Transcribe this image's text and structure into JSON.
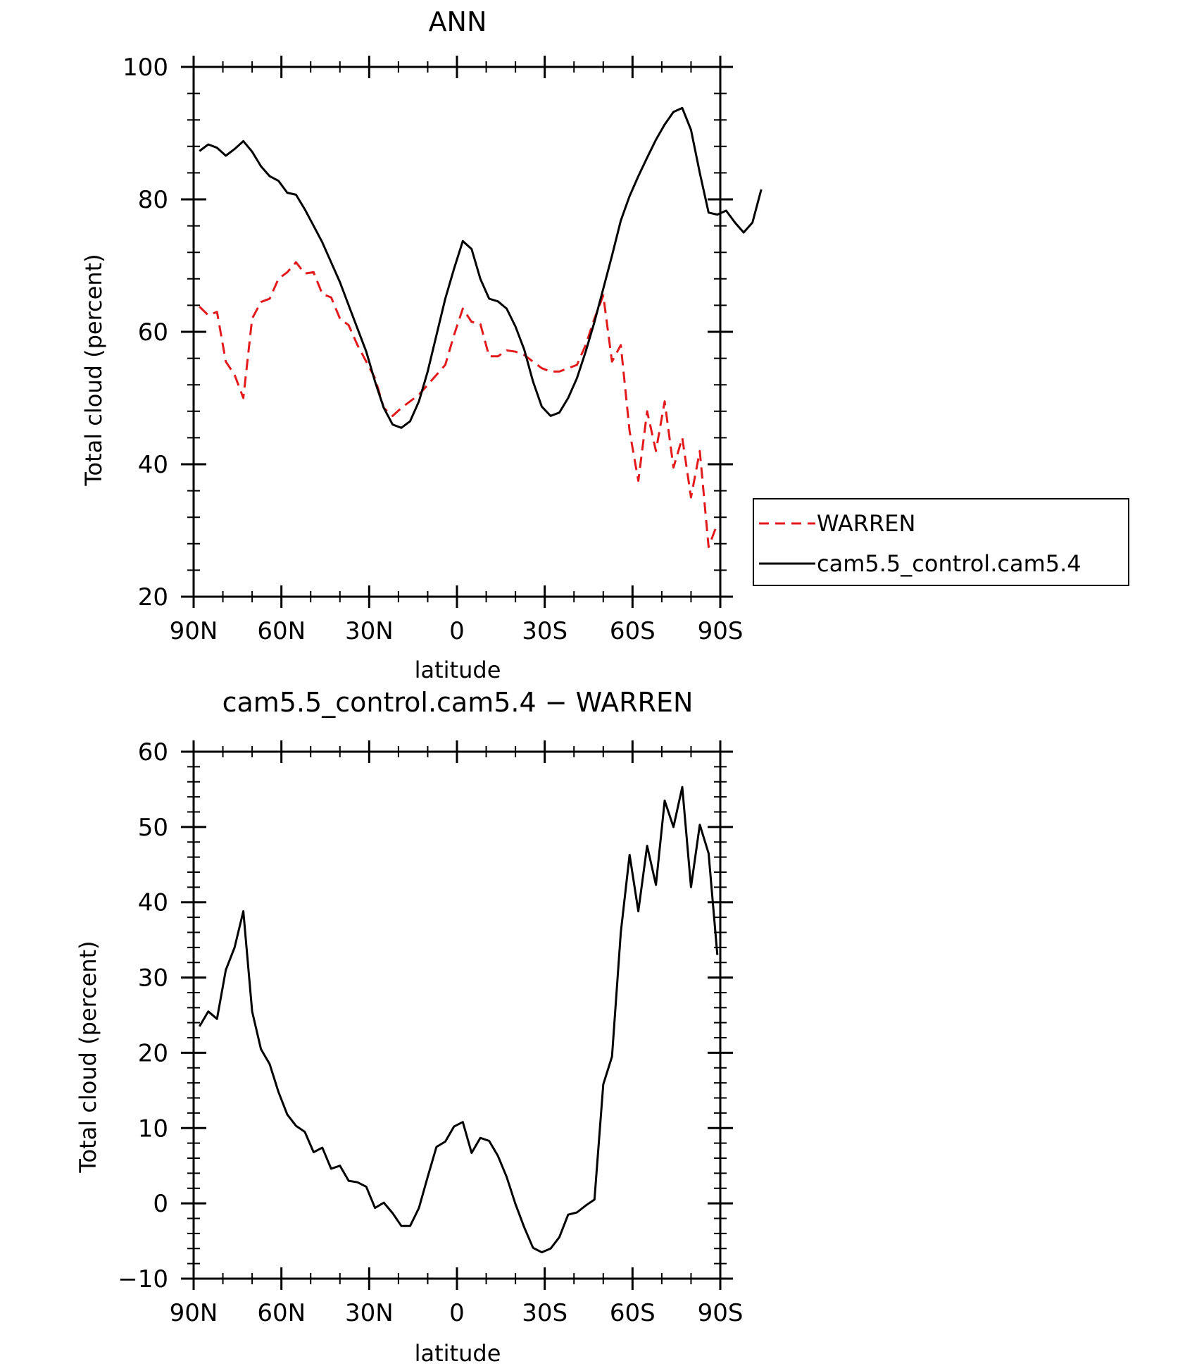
{
  "chart_data": [
    {
      "type": "line",
      "title": "ANN",
      "xlabel": "latitude",
      "ylabel": "Total cloud (percent)",
      "xlim": [
        90,
        -90
      ],
      "ylim": [
        20,
        100
      ],
      "x_tick_values": [
        90,
        60,
        30,
        0,
        -30,
        -60,
        -90
      ],
      "x_tick_labels": [
        "90N",
        "60N",
        "30N",
        "0",
        "30S",
        "60S",
        "90S"
      ],
      "y_tick_values": [
        20,
        40,
        60,
        80,
        100
      ],
      "y_tick_labels": [
        "20",
        "40",
        "60",
        "80",
        "100"
      ],
      "grid": false,
      "legend_position": "right",
      "series": [
        {
          "name": "WARREN",
          "color": "#e31a1c",
          "dash": "dashed",
          "points": [
            [
              88,
              63.8
            ],
            [
              85,
              62.5
            ],
            [
              82,
              63
            ],
            [
              79,
              55.5
            ],
            [
              76,
              53.5
            ],
            [
              73,
              50
            ],
            [
              70,
              62
            ],
            [
              67,
              64.5
            ],
            [
              64,
              65
            ],
            [
              61,
              68
            ],
            [
              58,
              69
            ],
            [
              55,
              70.5
            ],
            [
              52,
              68.8
            ],
            [
              49,
              69
            ],
            [
              46,
              65.7
            ],
            [
              43,
              65.2
            ],
            [
              40,
              62
            ],
            [
              37,
              61
            ],
            [
              34,
              58
            ],
            [
              31,
              55.5
            ],
            [
              28,
              53
            ],
            [
              25,
              48.5
            ],
            [
              22,
              47.3
            ],
            [
              19,
              48.5
            ],
            [
              16,
              49.5
            ],
            [
              13,
              50.5
            ],
            [
              10,
              52
            ],
            [
              7,
              53.5
            ],
            [
              4,
              55
            ],
            [
              1,
              59.5
            ],
            [
              -2,
              63.5
            ],
            [
              -5,
              61.5
            ],
            [
              -8,
              61.2
            ],
            [
              -11,
              56.3
            ],
            [
              -14,
              56.3
            ],
            [
              -17,
              57.2
            ],
            [
              -20,
              57
            ],
            [
              -23,
              56.5
            ],
            [
              -26,
              55.5
            ],
            [
              -29,
              54.5
            ],
            [
              -32,
              54
            ],
            [
              -35,
              54
            ],
            [
              -38,
              54.5
            ],
            [
              -41,
              55
            ],
            [
              -44,
              58
            ],
            [
              -47,
              62
            ],
            [
              -50,
              65.5
            ],
            [
              -53,
              55.5
            ],
            [
              -56,
              58
            ],
            [
              -59,
              45
            ],
            [
              -62,
              37.5
            ],
            [
              -65,
              48
            ],
            [
              -68,
              42
            ],
            [
              -71,
              49.5
            ],
            [
              -74,
              39.5
            ],
            [
              -77,
              44
            ],
            [
              -80,
              35
            ],
            [
              -83,
              42
            ],
            [
              -86,
              27.5
            ],
            [
              -89,
              31
            ]
          ]
        },
        {
          "name": "cam5.5_control.cam5.4",
          "color": "#000000",
          "dash": "solid",
          "points": [
            [
              88,
              87.3
            ],
            [
              85,
              88.3
            ],
            [
              82,
              87.8
            ],
            [
              79,
              86.6
            ],
            [
              76,
              87.6
            ],
            [
              73,
              88.8
            ],
            [
              70,
              87.2
            ],
            [
              67,
              85
            ],
            [
              64,
              83.5
            ],
            [
              61,
              82.8
            ],
            [
              58,
              81
            ],
            [
              55,
              80.7
            ],
            [
              52,
              78.5
            ],
            [
              49,
              76
            ],
            [
              46,
              73.5
            ],
            [
              43,
              70.5
            ],
            [
              40,
              67.5
            ],
            [
              37,
              64
            ],
            [
              34,
              60.5
            ],
            [
              31,
              57
            ],
            [
              28,
              52.5
            ],
            [
              25,
              48.5
            ],
            [
              22,
              46
            ],
            [
              19,
              45.5
            ],
            [
              16,
              46.5
            ],
            [
              13,
              49.5
            ],
            [
              10,
              54
            ],
            [
              7,
              59.5
            ],
            [
              4,
              65
            ],
            [
              1,
              69.5
            ],
            [
              -2,
              73.7
            ],
            [
              -5,
              72.5
            ],
            [
              -8,
              68
            ],
            [
              -11,
              65
            ],
            [
              -14,
              64.6
            ],
            [
              -17,
              63.5
            ],
            [
              -20,
              60.8
            ],
            [
              -23,
              57.3
            ],
            [
              -26,
              52.5
            ],
            [
              -29,
              48.7
            ],
            [
              -32,
              47.3
            ],
            [
              -35,
              47.8
            ],
            [
              -38,
              50
            ],
            [
              -41,
              53
            ],
            [
              -44,
              57
            ],
            [
              -47,
              61.5
            ],
            [
              -50,
              66.5
            ],
            [
              -53,
              71.5
            ],
            [
              -56,
              76.8
            ],
            [
              -59,
              80.5
            ],
            [
              -62,
              83.5
            ],
            [
              -65,
              86.3
            ],
            [
              -68,
              89
            ],
            [
              -71,
              91.3
            ],
            [
              -74,
              93.2
            ],
            [
              -77,
              93.8
            ],
            [
              -80,
              90.5
            ],
            [
              -83,
              84
            ],
            [
              -86,
              78
            ],
            [
              -89,
              77.7
            ],
            [
              -92,
              78.3
            ],
            [
              -95,
              76.5
            ],
            [
              -98,
              75
            ],
            [
              -101,
              76.5
            ],
            [
              -104,
              81.5
            ]
          ]
        }
      ]
    },
    {
      "type": "line",
      "title": "cam5.5_control.cam5.4 − WARREN",
      "xlabel": "latitude",
      "ylabel": "Total cloud (percent)",
      "xlim": [
        90,
        -90
      ],
      "ylim": [
        -10,
        60
      ],
      "x_tick_values": [
        90,
        60,
        30,
        0,
        -30,
        -60,
        -90
      ],
      "x_tick_labels": [
        "90N",
        "60N",
        "30N",
        "0",
        "30S",
        "60S",
        "90S"
      ],
      "y_tick_values": [
        -10,
        0,
        10,
        20,
        30,
        40,
        50,
        60
      ],
      "y_tick_labels": [
        "−10",
        "0",
        "10",
        "20",
        "30",
        "40",
        "50",
        "60"
      ],
      "grid": false,
      "series": [
        {
          "color": "#000000",
          "dash": "solid",
          "points": [
            [
              88,
              23.5
            ],
            [
              85,
              25.5
            ],
            [
              82,
              24.5
            ],
            [
              79,
              31
            ],
            [
              76,
              34
            ],
            [
              73,
              38.8
            ],
            [
              70,
              25.5
            ],
            [
              67,
              20.5
            ],
            [
              64,
              18.5
            ],
            [
              61,
              14.8
            ],
            [
              58,
              11.8
            ],
            [
              55,
              10.3
            ],
            [
              52,
              9.5
            ],
            [
              49,
              6.8
            ],
            [
              46,
              7.4
            ],
            [
              43,
              4.6
            ],
            [
              40,
              5
            ],
            [
              37,
              3
            ],
            [
              34,
              2.8
            ],
            [
              31,
              2.2
            ],
            [
              28,
              -0.6
            ],
            [
              25,
              0.1
            ],
            [
              22,
              -1.3
            ],
            [
              19,
              -3
            ],
            [
              16,
              -3
            ],
            [
              13,
              -0.6
            ],
            [
              10,
              3.5
            ],
            [
              7,
              7.5
            ],
            [
              4,
              8.2
            ],
            [
              1,
              10.2
            ],
            [
              -2,
              10.8
            ],
            [
              -5,
              6.7
            ],
            [
              -8,
              8.7
            ],
            [
              -11,
              8.3
            ],
            [
              -14,
              6.3
            ],
            [
              -17,
              3.5
            ],
            [
              -20,
              -0.1
            ],
            [
              -23,
              -3.2
            ],
            [
              -26,
              -5.9
            ],
            [
              -29,
              -6.5
            ],
            [
              -32,
              -6
            ],
            [
              -35,
              -4.5
            ],
            [
              -38,
              -1.5
            ],
            [
              -41,
              -1.2
            ],
            [
              -44,
              -0.3
            ],
            [
              -47,
              0.5
            ],
            [
              -50,
              15.8
            ],
            [
              -53,
              19.5
            ],
            [
              -56,
              36
            ],
            [
              -59,
              46.3
            ],
            [
              -62,
              38.8
            ],
            [
              -65,
              47.5
            ],
            [
              -68,
              42.3
            ],
            [
              -71,
              53.5
            ],
            [
              -74,
              50
            ],
            [
              -77,
              55.3
            ],
            [
              -80,
              42
            ],
            [
              -83,
              50.3
            ],
            [
              -86,
              46.5
            ],
            [
              -89,
              33
            ]
          ]
        }
      ]
    }
  ]
}
